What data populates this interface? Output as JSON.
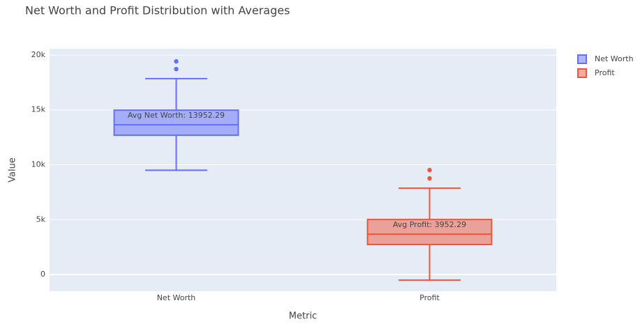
{
  "chart_data": {
    "type": "box",
    "title": "Net Worth and Profit Distribution with Averages",
    "xlabel": "Metric",
    "ylabel": "Value",
    "categories": [
      "Net Worth",
      "Profit"
    ],
    "series": [
      {
        "name": "Net Worth",
        "color": "#636efa",
        "lowerfence": 9500,
        "q1": 12690,
        "median": 13640,
        "q3": 14975,
        "upperfence": 17850,
        "outliers": [
          18720,
          19420
        ]
      },
      {
        "name": "Profit",
        "color": "#ef553b",
        "lowerfence": -510,
        "q1": 2730,
        "median": 3680,
        "q3": 5010,
        "upperfence": 7870,
        "outliers": [
          8760,
          9520
        ]
      }
    ],
    "annotations": [
      "Avg Net Worth: 13952.29",
      "Avg Profit: 3952.29"
    ],
    "ylim": [
      -1520,
      20570
    ],
    "yticks": [
      0,
      {
        "value": 5000,
        "label": "5k"
      },
      {
        "value": 10000,
        "label": "10k"
      },
      {
        "value": 15000,
        "label": "15k"
      },
      {
        "value": 20000,
        "label": "20k"
      }
    ],
    "grid": true,
    "legend": "top-right"
  }
}
